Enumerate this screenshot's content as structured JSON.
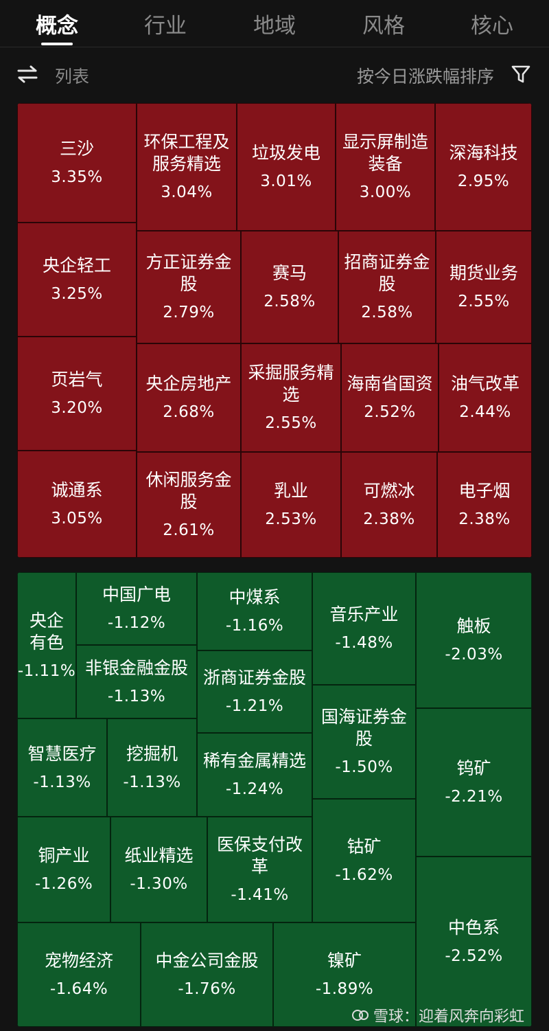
{
  "tabs": [
    {
      "label": "概念",
      "active": true
    },
    {
      "label": "行业",
      "active": false
    },
    {
      "label": "地域",
      "active": false
    },
    {
      "label": "风格",
      "active": false
    },
    {
      "label": "核心",
      "active": false
    }
  ],
  "toolbar": {
    "view_label": "列表",
    "sort_label": "按今日涨跌幅排序",
    "icons": [
      "swap-icon",
      "filter-icon"
    ]
  },
  "gainers": [
    {
      "name": "三沙",
      "change": "3.35%"
    },
    {
      "name": "环保工程及服务精选",
      "change": "3.04%"
    },
    {
      "name": "垃圾发电",
      "change": "3.01%"
    },
    {
      "name": "显示屏制造装备",
      "change": "3.00%"
    },
    {
      "name": "深海科技",
      "change": "2.95%"
    },
    {
      "name": "央企轻工",
      "change": "3.25%"
    },
    {
      "name": "方正证券金股",
      "change": "2.79%"
    },
    {
      "name": "赛马",
      "change": "2.58%"
    },
    {
      "name": "招商证券金股",
      "change": "2.58%"
    },
    {
      "name": "期货业务",
      "change": "2.55%"
    },
    {
      "name": "页岩气",
      "change": "3.20%"
    },
    {
      "name": "央企房地产",
      "change": "2.68%"
    },
    {
      "name": "采掘服务精选",
      "change": "2.55%"
    },
    {
      "name": "海南省国资",
      "change": "2.52%"
    },
    {
      "name": "油气改革",
      "change": "2.44%"
    },
    {
      "name": "诚通系",
      "change": "3.05%"
    },
    {
      "name": "休闲服务金股",
      "change": "2.61%"
    },
    {
      "name": "乳业",
      "change": "2.53%"
    },
    {
      "name": "可燃冰",
      "change": "2.38%"
    },
    {
      "name": "电子烟",
      "change": "2.38%"
    }
  ],
  "losers": [
    {
      "name": "央企有色",
      "change": "-1.11%"
    },
    {
      "name": "中国广电",
      "change": "-1.12%"
    },
    {
      "name": "非银金融金股",
      "change": "-1.13%"
    },
    {
      "name": "中煤系",
      "change": "-1.16%"
    },
    {
      "name": "浙商证券金股",
      "change": "-1.21%"
    },
    {
      "name": "音乐产业",
      "change": "-1.48%"
    },
    {
      "name": "国海证券金股",
      "change": "-1.50%"
    },
    {
      "name": "触板",
      "change": "-2.03%"
    },
    {
      "name": "智慧医疗",
      "change": "-1.13%"
    },
    {
      "name": "挖掘机",
      "change": "-1.13%"
    },
    {
      "name": "稀有金属精选",
      "change": "-1.24%"
    },
    {
      "name": "钨矿",
      "change": "-2.21%"
    },
    {
      "name": "铜产业",
      "change": "-1.26%"
    },
    {
      "name": "纸业精选",
      "change": "-1.30%"
    },
    {
      "name": "医保支付改革",
      "change": "-1.41%"
    },
    {
      "name": "钴矿",
      "change": "-1.62%"
    },
    {
      "name": "中色系",
      "change": "-2.52%"
    },
    {
      "name": "宠物经济",
      "change": "-1.64%"
    },
    {
      "name": "中金公司金股",
      "change": "-1.76%"
    },
    {
      "name": "镍矿",
      "change": "-1.89%"
    }
  ],
  "watermark": {
    "text": "雪球：迎着风奔向彩虹",
    "icon": "snowball-logo-icon"
  },
  "colors": {
    "gain": "#83131a",
    "loss": "#0f5b2a",
    "background": "#131313"
  }
}
